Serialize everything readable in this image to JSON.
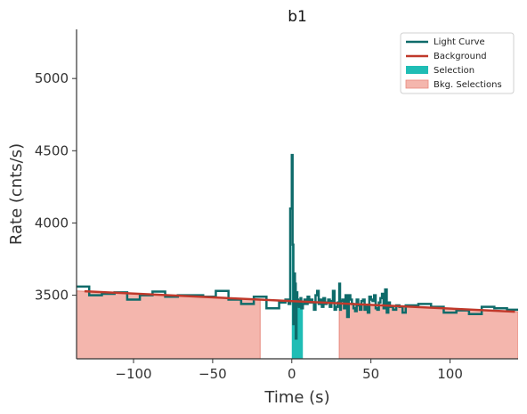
{
  "chart_data": {
    "type": "line",
    "title": "b1",
    "xlabel": "Time (s)",
    "ylabel": "Rate (cnts/s)",
    "xlim": [
      -136,
      143
    ],
    "ylim": [
      3060,
      5340
    ],
    "x_ticks": [
      -100,
      -50,
      0,
      50,
      100
    ],
    "x_tick_labels": [
      "−100",
      "−50",
      "0",
      "50",
      "100"
    ],
    "y_ticks": [
      3500,
      4000,
      4500,
      5000
    ],
    "y_tick_labels": [
      "3500",
      "4000",
      "4500",
      "5000"
    ],
    "grid": false,
    "legend_position": "top-right",
    "legend": [
      {
        "label": "Light Curve",
        "kind": "line",
        "color": "#0e6b6a"
      },
      {
        "label": "Background",
        "kind": "line",
        "color": "#c0392b"
      },
      {
        "label": "Selection",
        "kind": "patch",
        "color": "#1fbdb5"
      },
      {
        "label": "Bkg. Selections",
        "kind": "patch",
        "color": "#f4b6ad"
      }
    ],
    "colors": {
      "light_curve": "#0e6b6a",
      "background": "#c0392b",
      "selection": "#1fbdb5",
      "bkg_fill": "#f4b6ad",
      "bkg_edge": "#e8897d"
    },
    "background_fit": {
      "x": [
        -136,
        143
      ],
      "y": [
        3530,
        3385
      ]
    },
    "selection_range": [
      0,
      7
    ],
    "bkg_selections": [
      [
        -136,
        -20
      ],
      [
        30,
        143
      ]
    ],
    "light_curve": {
      "edges": [
        -136,
        -128,
        -120,
        -112,
        -104,
        -96,
        -88,
        -80,
        -72,
        -64,
        -56,
        -48,
        -40,
        -32,
        -24,
        -16,
        -8,
        -4,
        -2,
        -1,
        0,
        0.5,
        1,
        1.5,
        2,
        2.5,
        3,
        3.5,
        4,
        4.5,
        5,
        5.5,
        6,
        7,
        8,
        9,
        10,
        11,
        12,
        13,
        14,
        15,
        16,
        17,
        18,
        19,
        20,
        21,
        22,
        23,
        24,
        25,
        26,
        27,
        28,
        29,
        30,
        30.5,
        31,
        32,
        33,
        34,
        35,
        36,
        37,
        38,
        39,
        40,
        41,
        42,
        43,
        44,
        45,
        46,
        47,
        48,
        49,
        50,
        51,
        52,
        53,
        54,
        55,
        56,
        57,
        58,
        59,
        60,
        61,
        62,
        64,
        66,
        68,
        70,
        72,
        80,
        88,
        96,
        104,
        112,
        120,
        128,
        136,
        143
      ],
      "rates": [
        3560,
        3500,
        3510,
        3520,
        3470,
        3500,
        3525,
        3490,
        3500,
        3500,
        3490,
        3530,
        3470,
        3440,
        3490,
        3410,
        3450,
        3470,
        3440,
        4100,
        4470,
        3850,
        3300,
        3650,
        3580,
        3200,
        3520,
        3470,
        3430,
        3420,
        3460,
        3480,
        3410,
        3440,
        3470,
        3440,
        3490,
        3450,
        3470,
        3450,
        3400,
        3500,
        3530,
        3440,
        3470,
        3420,
        3480,
        3440,
        3450,
        3470,
        3420,
        3460,
        3530,
        3400,
        3420,
        3450,
        3580,
        3400,
        3460,
        3470,
        3410,
        3500,
        3350,
        3500,
        3470,
        3440,
        3410,
        3390,
        3470,
        3430,
        3400,
        3460,
        3470,
        3400,
        3420,
        3380,
        3490,
        3470,
        3460,
        3500,
        3410,
        3400,
        3450,
        3480,
        3510,
        3410,
        3540,
        3380,
        3450,
        3420,
        3400,
        3430,
        3420,
        3380,
        3430,
        3440,
        3420,
        3380,
        3395,
        3370,
        3420,
        3410,
        3400
      ]
    }
  }
}
